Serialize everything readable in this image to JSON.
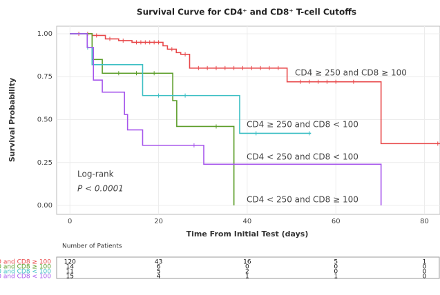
{
  "chart_data": {
    "type": "step",
    "title": "Survival Curve for CD4⁺ and CD8⁺ T-cell Cutoffs",
    "x_label": "Time From Initial Test (days)",
    "y_label": "Survival Probability",
    "annotations": [
      "Log-rank",
      "P < 0.0001"
    ],
    "xlim": [
      -3,
      83.5
    ],
    "ylim": [
      -0.052,
      1.044
    ],
    "xticks": [
      0,
      20,
      40,
      60,
      80
    ],
    "yticks": [
      {
        "value": 0,
        "label": "0.00"
      },
      {
        "value": 0.25,
        "label": "0.25"
      },
      {
        "value": 0.5,
        "label": "0.50"
      },
      {
        "value": 0.75,
        "label": "0.75"
      },
      {
        "value": 1,
        "label": "1.00"
      }
    ],
    "grid": true,
    "risk_table_title": "Number of Patients",
    "series": [
      {
        "name": "CD4 ≥ 250 and CD8 ≥ 100",
        "color": "#e8484a",
        "x": [
          0,
          5,
          8,
          11,
          14,
          21,
          22,
          24,
          25,
          27,
          49,
          70.2,
          84
        ],
        "values": [
          1,
          0.99,
          0.97,
          0.96,
          0.95,
          0.93,
          0.91,
          0.89,
          0.88,
          0.8,
          0.72,
          0.36,
          0.36
        ],
        "censored": [
          2,
          4,
          6,
          9,
          12,
          15,
          16,
          17,
          18,
          19,
          20,
          23,
          26,
          29,
          31,
          33,
          35,
          37,
          39,
          41,
          43,
          45,
          47,
          52,
          54,
          56,
          58,
          60,
          64,
          83
        ],
        "at_risk": [
          120,
          43,
          16,
          5,
          1
        ]
      },
      {
        "name": "CD4 < 250 and CD8 ≥ 100",
        "color": "#5c9e2a",
        "x": [
          0,
          5,
          7.3,
          23.2,
          24.1,
          37
        ],
        "values": [
          1,
          0.85,
          0.77,
          0.61,
          0.46,
          0
        ],
        "censored": [
          11,
          15,
          19,
          33
        ],
        "at_risk": [
          14,
          6,
          0,
          0,
          0
        ]
      },
      {
        "name": "CD4 ≥ 250 and CD8 < 100",
        "color": "#3cbfc4",
        "x": [
          0,
          3.9,
          5,
          16.4,
          38.3,
          54.4
        ],
        "values": [
          1,
          0.92,
          0.82,
          0.64,
          0.42,
          0.42
        ],
        "censored": [
          4,
          20,
          26,
          42,
          54
        ],
        "at_risk": [
          11,
          5,
          2,
          0,
          0
        ]
      },
      {
        "name": "CD4 < 250 and CD8 < 100",
        "color": "#a656ec",
        "x": [
          0,
          3.9,
          5.3,
          7.3,
          12.3,
          13,
          16.4,
          30.2,
          70.2
        ],
        "values": [
          1,
          0.92,
          0.73,
          0.66,
          0.53,
          0.44,
          0.35,
          0.24,
          0
        ],
        "censored": [
          28
        ],
        "at_risk": [
          15,
          4,
          1,
          1,
          0
        ]
      }
    ]
  }
}
